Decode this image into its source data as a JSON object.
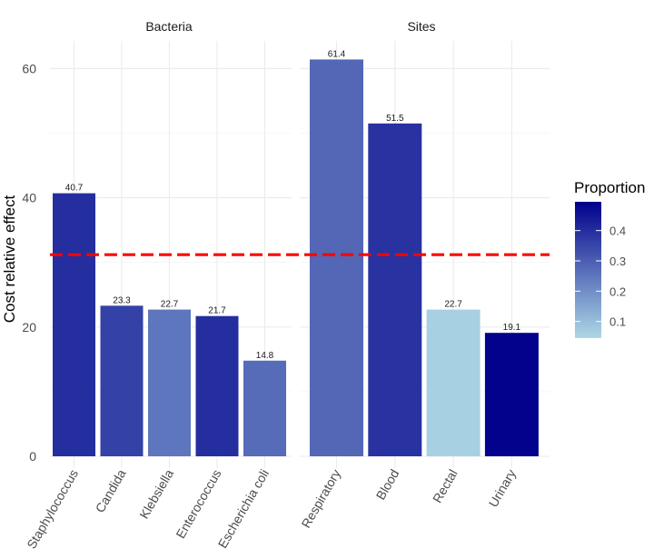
{
  "chart_data": {
    "type": "bar",
    "title": "",
    "ylabel": "Cost relative effect",
    "xlabel": "",
    "ylim": [
      0,
      62
    ],
    "yticks": [
      0,
      20,
      40,
      60
    ],
    "reference_line": {
      "value": 31.2,
      "color": "#ff0000",
      "style": "dashed"
    },
    "facets": [
      {
        "label": "Bacteria",
        "categories": [
          "Staphylococcus",
          "Candida",
          "Klebsiella",
          "Enterococcus",
          "Escherichia coli"
        ],
        "values": [
          40.7,
          23.3,
          22.7,
          21.7,
          14.8
        ],
        "value_labels": [
          "40.7",
          "23.3",
          "22.7",
          "21.7",
          "14.8"
        ],
        "proportion": [
          0.4,
          0.36,
          0.25,
          0.4,
          0.27
        ]
      },
      {
        "label": "Sites",
        "categories": [
          "Respiratory",
          "Blood",
          "Rectal",
          "Urinary"
        ],
        "values": [
          61.4,
          51.5,
          22.7,
          19.1
        ],
        "value_labels": [
          "61.4",
          "51.5",
          "22.7",
          "19.1"
        ],
        "proportion": [
          0.28,
          0.39,
          0.06,
          0.49
        ]
      }
    ],
    "legend": {
      "title": "Proportion",
      "ticks": [
        "0.1",
        "0.2",
        "0.3",
        "0.4"
      ],
      "tick_values": [
        0.1,
        0.2,
        0.3,
        0.4
      ],
      "range": [
        0.045,
        0.495
      ],
      "low_color": "#add8e6",
      "high_color": "#00008b",
      "placement": "right"
    }
  }
}
